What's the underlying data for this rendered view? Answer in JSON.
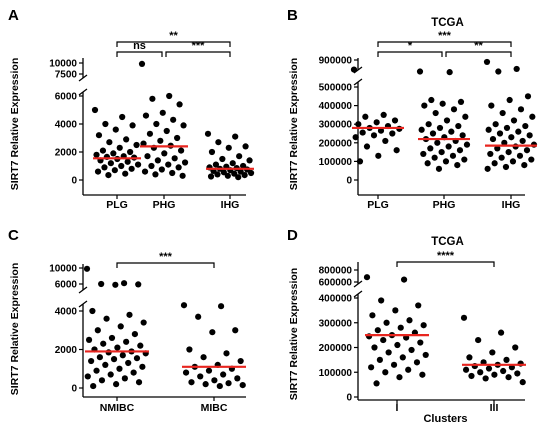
{
  "chart_data": [
    {
      "panel": "A",
      "type": "scatter",
      "title": "",
      "ylabel": "SIRT7 Relative Expression",
      "xlabel": "",
      "categories": [
        "PLG",
        "PHG",
        "IHG"
      ],
      "y_ticks_lower": [
        0,
        2000,
        4000,
        6000
      ],
      "y_ticks_upper": [
        7500,
        10000
      ],
      "axis_break": [
        6500,
        7000
      ],
      "medians": [
        1550,
        2400,
        800
      ],
      "series": [
        {
          "category": "PLG",
          "values": [
            5000,
            4500,
            4000,
            3900,
            3600,
            3200,
            2900,
            2700,
            2500,
            2300,
            2100,
            2000,
            1900,
            1800,
            1700,
            1650,
            1600,
            1500,
            1400,
            1300,
            1200,
            1100,
            1000,
            900,
            800,
            700,
            600,
            450,
            350
          ]
        },
        {
          "category": "PHG",
          "values": [
            9800,
            6000,
            5800,
            5400,
            4800,
            4600,
            4300,
            4000,
            3900,
            3500,
            3300,
            3000,
            2800,
            2600,
            2450,
            2300,
            2100,
            1900,
            1700,
            1550,
            1400,
            1250,
            1100,
            1000,
            900,
            750,
            600,
            500,
            400,
            300
          ]
        },
        {
          "category": "IHG",
          "values": [
            3300,
            3100,
            2700,
            2400,
            2300,
            2000,
            1700,
            1500,
            1400,
            1200,
            1100,
            1000,
            950,
            900,
            850,
            800,
            750,
            700,
            650,
            600,
            550,
            500,
            450,
            400,
            350,
            300,
            250,
            200
          ]
        }
      ],
      "significance": [
        {
          "from": "PLG",
          "to": "IHG",
          "label": "**"
        },
        {
          "from": "PLG",
          "to": "PHG",
          "label": "ns"
        },
        {
          "from": "PHG",
          "to": "IHG",
          "label": "***"
        }
      ]
    },
    {
      "panel": "B",
      "type": "scatter",
      "title": "TCGA",
      "ylabel": "SIRT7 Relative Expression",
      "xlabel": "",
      "categories": [
        "PLG",
        "PHG",
        "IHG"
      ],
      "y_ticks_lower": [
        0,
        100000,
        200000,
        300000,
        400000,
        500000
      ],
      "y_ticks_upper": [
        900000
      ],
      "axis_break": [
        520000,
        700000
      ],
      "medians": [
        280000,
        220000,
        185000
      ],
      "series": [
        {
          "category": "PLG",
          "values": [
            750000,
            350000,
            340000,
            320000,
            310000,
            300000,
            290000,
            280000,
            275000,
            265000,
            255000,
            250000,
            240000,
            230000,
            210000,
            180000,
            160000,
            130000,
            100000
          ]
        },
        {
          "category": "PHG",
          "values": [
            720000,
            710000,
            430000,
            420000,
            410000,
            400000,
            380000,
            360000,
            340000,
            320000,
            300000,
            290000,
            280000,
            270000,
            260000,
            250000,
            240000,
            230000,
            220000,
            210000,
            200000,
            190000,
            180000,
            170000,
            160000,
            150000,
            140000,
            130000,
            120000,
            110000,
            100000,
            90000,
            80000,
            60000
          ]
        },
        {
          "category": "IHG",
          "values": [
            870000,
            760000,
            720000,
            450000,
            430000,
            400000,
            380000,
            360000,
            340000,
            320000,
            300000,
            290000,
            280000,
            270000,
            260000,
            250000,
            240000,
            230000,
            220000,
            210000,
            200000,
            190000,
            180000,
            170000,
            160000,
            150000,
            140000,
            130000,
            120000,
            110000,
            100000,
            90000,
            80000,
            70000,
            60000
          ]
        }
      ],
      "significance": [
        {
          "from": "PLG",
          "to": "IHG",
          "label": "***"
        },
        {
          "from": "PLG",
          "to": "PHG",
          "label": "*"
        },
        {
          "from": "PHG",
          "to": "IHG",
          "label": "**"
        }
      ]
    },
    {
      "panel": "C",
      "type": "scatter",
      "title": "",
      "ylabel": "SIRT7 Relative Expression",
      "xlabel": "",
      "categories": [
        "NMIBC",
        "MIBC"
      ],
      "y_ticks_lower": [
        0,
        2000,
        4000
      ],
      "y_ticks_upper": [
        6000,
        10000
      ],
      "axis_break": [
        5000,
        5500
      ],
      "medians": [
        1900,
        1100
      ],
      "series": [
        {
          "category": "NMIBC",
          "values": [
            9800,
            6200,
            6000,
            5900,
            5800,
            4000,
            3800,
            3600,
            3400,
            3200,
            3000,
            2800,
            2600,
            2500,
            2400,
            2300,
            2200,
            2100,
            2000,
            1900,
            1850,
            1800,
            1700,
            1600,
            1550,
            1500,
            1400,
            1300,
            1200,
            1100,
            1000,
            900,
            800,
            700,
            600,
            500,
            400,
            300,
            200,
            100
          ]
        },
        {
          "category": "MIBC",
          "values": [
            4300,
            4250,
            3700,
            3000,
            2900,
            2000,
            1800,
            1600,
            1400,
            1200,
            1100,
            1000,
            900,
            800,
            700,
            600,
            500,
            400,
            300,
            250,
            200,
            150,
            100
          ]
        }
      ],
      "significance": [
        {
          "from": "NMIBC",
          "to": "MIBC",
          "label": "***"
        }
      ]
    },
    {
      "panel": "D",
      "type": "scatter",
      "title": "TCGA",
      "ylabel": "SIRT7 Relative Expression",
      "xlabel": "Clusters",
      "categories": [
        "I",
        "III"
      ],
      "y_ticks_lower": [
        0,
        100000,
        200000,
        300000,
        400000
      ],
      "y_ticks_upper": [
        600000,
        800000
      ],
      "axis_break": [
        450000,
        550000
      ],
      "medians": [
        250000,
        130000
      ],
      "series": [
        {
          "category": "I",
          "values": [
            680000,
            640000,
            390000,
            370000,
            350000,
            330000,
            310000,
            300000,
            290000,
            280000,
            270000,
            260000,
            250000,
            245000,
            240000,
            230000,
            220000,
            210000,
            200000,
            190000,
            180000,
            170000,
            160000,
            150000,
            140000,
            130000,
            120000,
            110000,
            100000,
            90000,
            80000,
            55000
          ]
        },
        {
          "category": "III",
          "values": [
            320000,
            260000,
            230000,
            200000,
            180000,
            160000,
            150000,
            140000,
            135000,
            130000,
            125000,
            120000,
            115000,
            110000,
            105000,
            100000,
            95000,
            90000,
            85000,
            80000,
            75000,
            60000
          ]
        }
      ],
      "significance": [
        {
          "from": "I",
          "to": "III",
          "label": "****"
        }
      ]
    }
  ],
  "colors": {
    "points": "#000000",
    "median": "#e8251f",
    "axis": "#000000"
  }
}
